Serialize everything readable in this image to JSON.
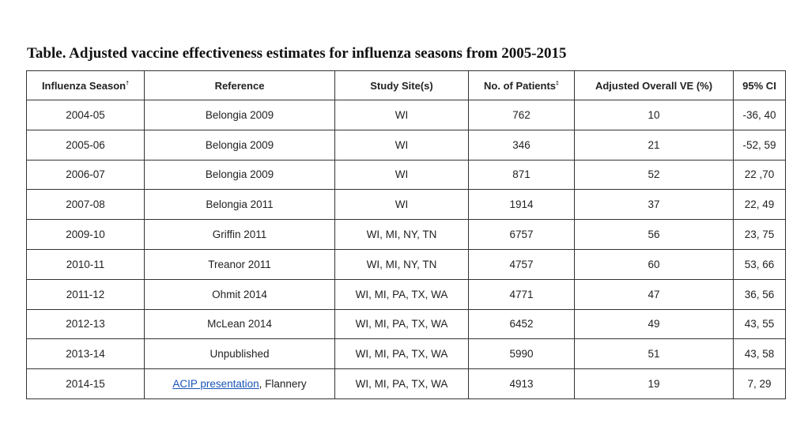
{
  "title": "Table. Adjusted vaccine effectiveness estimates for influenza seasons from 2005-2015",
  "headers": {
    "season": "Influenza Season",
    "season_mark": "†",
    "reference": "Reference",
    "sites": "Study Site(s)",
    "patients": "No. of Patients",
    "patients_mark": "‡",
    "ve": "Adjusted Overall VE (%)",
    "ci": "95% CI"
  },
  "rows": [
    {
      "season": "2004-05",
      "reference": "Belongia 2009",
      "sites": "WI",
      "patients": "762",
      "ve": "10",
      "ci": "-36, 40"
    },
    {
      "season": "2005-06",
      "reference": "Belongia 2009",
      "sites": "WI",
      "patients": "346",
      "ve": "21",
      "ci": "-52, 59"
    },
    {
      "season": "2006-07",
      "reference": "Belongia 2009",
      "sites": "WI",
      "patients": "871",
      "ve": "52",
      "ci": "22 ,70"
    },
    {
      "season": "2007-08",
      "reference": "Belongia 2011",
      "sites": "WI",
      "patients": "1914",
      "ve": "37",
      "ci": "22, 49"
    },
    {
      "season": "2009-10",
      "reference": "Griffin 2011",
      "sites": "WI, MI, NY, TN",
      "patients": "6757",
      "ve": "56",
      "ci": "23, 75"
    },
    {
      "season": "2010-11",
      "reference": "Treanor 2011",
      "sites": "WI, MI, NY, TN",
      "patients": "4757",
      "ve": "60",
      "ci": "53, 66"
    },
    {
      "season": "2011-12",
      "reference": "Ohmit 2014",
      "sites": "WI, MI, PA, TX, WA",
      "patients": "4771",
      "ve": "47",
      "ci": "36, 56"
    },
    {
      "season": "2012-13",
      "reference": "McLean 2014",
      "sites": "WI, MI, PA, TX, WA",
      "patients": "6452",
      "ve": "49",
      "ci": "43, 55"
    },
    {
      "season": "2013-14",
      "reference": "Unpublished",
      "sites": "WI, MI, PA, TX, WA",
      "patients": "5990",
      "ve": "51",
      "ci": "43, 58"
    },
    {
      "season": "2014-15",
      "reference": "ACIP presentation",
      "reference_suffix": ", Flannery",
      "reference_is_link": true,
      "sites": "WI, MI, PA, TX, WA",
      "patients": "4913",
      "ve": "19",
      "ci": "7, 29"
    }
  ],
  "colors": {
    "link": "#1a55b8",
    "border": "#333333",
    "text": "#222222"
  }
}
